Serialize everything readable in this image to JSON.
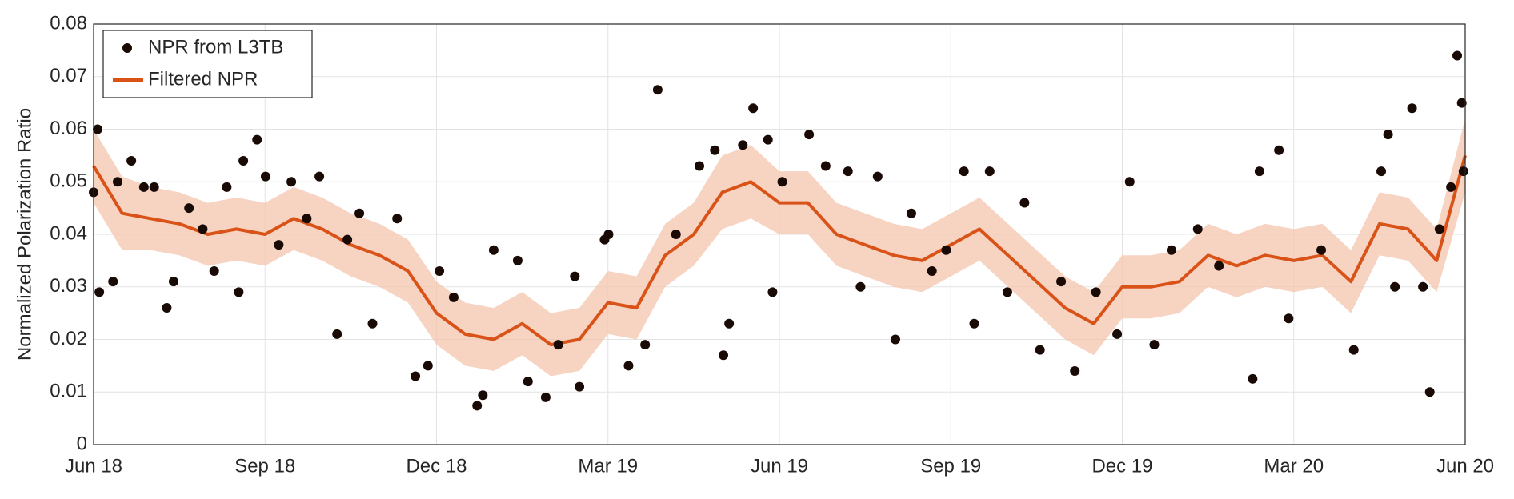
{
  "chart_data": {
    "type": "line",
    "ylabel": "Normalized Polarization Ratio",
    "xlim": [
      0,
      24
    ],
    "xticks": [
      {
        "value": 0,
        "label": "Jun 18"
      },
      {
        "value": 3,
        "label": "Sep 18"
      },
      {
        "value": 6,
        "label": "Dec 18"
      },
      {
        "value": 9,
        "label": "Mar 19"
      },
      {
        "value": 12,
        "label": "Jun 19"
      },
      {
        "value": 15,
        "label": "Sep 19"
      },
      {
        "value": 18,
        "label": "Dec 19"
      },
      {
        "value": 21,
        "label": "Mar 20"
      },
      {
        "value": 24,
        "label": "Jun 20"
      }
    ],
    "ylim": [
      0,
      0.08
    ],
    "yticks": [
      {
        "value": 0,
        "label": "0"
      },
      0.01,
      0.02,
      0.03,
      0.04,
      0.05,
      0.06,
      0.07,
      0.08
    ],
    "grid": true,
    "legend": "upper left",
    "series": [
      {
        "name": "NPR from L3TB",
        "type": "scatter",
        "color": "#1a0a05",
        "x": [
          0,
          0.07,
          0.1,
          0.34,
          0.42,
          0.66,
          0.88,
          1.06,
          1.28,
          1.4,
          1.67,
          1.91,
          2.11,
          2.33,
          2.54,
          2.62,
          2.86,
          3.01,
          3.24,
          3.46,
          3.73,
          3.95,
          4.26,
          4.44,
          4.65,
          4.88,
          5.31,
          5.63,
          5.85,
          6.05,
          6.3,
          6.71,
          6.81,
          7.0,
          7.42,
          7.6,
          7.91,
          8.13,
          8.42,
          8.5,
          8.94,
          9.01,
          9.36,
          9.65,
          9.87,
          10.19,
          10.6,
          10.87,
          11.02,
          11.12,
          11.36,
          11.54,
          11.8,
          11.88,
          12.05,
          12.52,
          12.81,
          13.2,
          13.42,
          13.72,
          14.03,
          14.31,
          14.67,
          14.92,
          15.23,
          15.41,
          15.68,
          15.99,
          16.29,
          16.56,
          16.93,
          17.17,
          17.54,
          17.91,
          18.13,
          18.56,
          18.86,
          19.32,
          19.69,
          20.28,
          20.4,
          20.74,
          20.91,
          21.48,
          22.05,
          22.53,
          22.65,
          22.77,
          23.07,
          23.26,
          23.38,
          23.55,
          23.75,
          23.86,
          23.94,
          23.97
        ],
        "values": [
          0.048,
          0.06,
          0.029,
          0.031,
          0.05,
          0.054,
          0.049,
          0.049,
          0.026,
          0.031,
          0.045,
          0.041,
          0.033,
          0.049,
          0.029,
          0.054,
          0.058,
          0.051,
          0.038,
          0.05,
          0.043,
          0.051,
          0.021,
          0.039,
          0.044,
          0.023,
          0.043,
          0.013,
          0.015,
          0.033,
          0.028,
          0.0074,
          0.0094,
          0.037,
          0.035,
          0.012,
          0.009,
          0.019,
          0.032,
          0.011,
          0.039,
          0.04,
          0.015,
          0.019,
          0.0675,
          0.04,
          0.053,
          0.056,
          0.017,
          0.023,
          0.057,
          0.064,
          0.058,
          0.029,
          0.05,
          0.059,
          0.053,
          0.052,
          0.03,
          0.051,
          0.02,
          0.044,
          0.033,
          0.037,
          0.052,
          0.023,
          0.052,
          0.029,
          0.046,
          0.018,
          0.031,
          0.014,
          0.029,
          0.021,
          0.05,
          0.019,
          0.037,
          0.041,
          0.034,
          0.0125,
          0.052,
          0.056,
          0.024,
          0.037,
          0.018,
          0.052,
          0.059,
          0.03,
          0.064,
          0.03,
          0.01,
          0.041,
          0.049,
          0.074,
          0.065,
          0.052
        ]
      },
      {
        "name": "Filtered NPR",
        "type": "line",
        "color": "#d95319",
        "band_color": "#f4c4ad",
        "x": [
          0,
          0.5,
          1,
          1.5,
          2,
          2.5,
          3,
          3.5,
          4,
          4.5,
          5,
          5.5,
          6,
          6.5,
          7,
          7.5,
          8,
          8.5,
          9,
          9.5,
          10,
          10.5,
          11,
          11.5,
          12,
          12.5,
          13,
          13.5,
          14,
          14.5,
          15,
          15.5,
          16,
          16.5,
          17,
          17.5,
          18,
          18.5,
          19,
          19.5,
          20,
          20.5,
          21,
          21.5,
          22,
          22.5,
          23,
          23.5,
          24
        ],
        "values": [
          0.053,
          0.044,
          0.043,
          0.042,
          0.04,
          0.041,
          0.04,
          0.043,
          0.041,
          0.038,
          0.036,
          0.033,
          0.025,
          0.021,
          0.02,
          0.023,
          0.019,
          0.02,
          0.027,
          0.026,
          0.036,
          0.04,
          0.048,
          0.05,
          0.046,
          0.046,
          0.04,
          0.038,
          0.036,
          0.035,
          0.038,
          0.041,
          0.036,
          0.031,
          0.026,
          0.023,
          0.03,
          0.03,
          0.031,
          0.036,
          0.034,
          0.036,
          0.035,
          0.036,
          0.031,
          0.042,
          0.041,
          0.035,
          0.055
        ],
        "lower": [
          0.046,
          0.037,
          0.037,
          0.036,
          0.034,
          0.035,
          0.034,
          0.037,
          0.035,
          0.032,
          0.03,
          0.027,
          0.019,
          0.015,
          0.014,
          0.017,
          0.013,
          0.014,
          0.021,
          0.02,
          0.03,
          0.034,
          0.041,
          0.043,
          0.04,
          0.04,
          0.034,
          0.032,
          0.03,
          0.029,
          0.032,
          0.035,
          0.03,
          0.025,
          0.02,
          0.017,
          0.024,
          0.024,
          0.025,
          0.03,
          0.028,
          0.03,
          0.029,
          0.03,
          0.025,
          0.036,
          0.035,
          0.029,
          0.048
        ],
        "upper": [
          0.06,
          0.051,
          0.049,
          0.048,
          0.046,
          0.047,
          0.046,
          0.049,
          0.047,
          0.044,
          0.042,
          0.039,
          0.031,
          0.027,
          0.026,
          0.029,
          0.025,
          0.026,
          0.033,
          0.032,
          0.042,
          0.046,
          0.055,
          0.057,
          0.052,
          0.052,
          0.046,
          0.044,
          0.042,
          0.041,
          0.044,
          0.047,
          0.042,
          0.037,
          0.032,
          0.029,
          0.036,
          0.036,
          0.037,
          0.042,
          0.04,
          0.042,
          0.041,
          0.042,
          0.037,
          0.048,
          0.047,
          0.041,
          0.062
        ]
      }
    ]
  }
}
